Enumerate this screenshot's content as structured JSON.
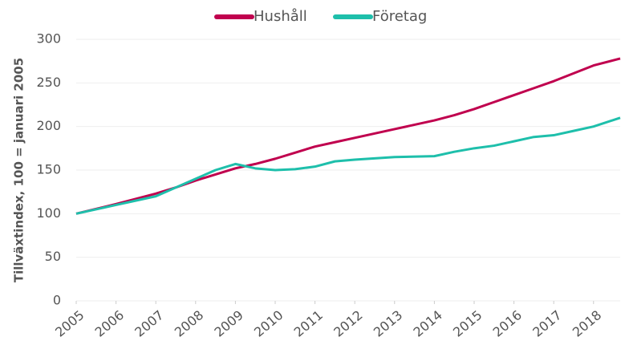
{
  "chart_data": {
    "type": "line",
    "y_label": "Tillväxtindex, 100 = januari 2005",
    "x": [
      2005,
      2006,
      2007,
      2007.5,
      2008,
      2008.5,
      2009,
      2009.5,
      2010,
      2010.5,
      2011,
      2011.5,
      2012,
      2013,
      2014,
      2014.5,
      2015,
      2015.5,
      2016,
      2016.5,
      2017,
      2017.5,
      2018,
      2018.67
    ],
    "series": [
      {
        "name": "Hushåll",
        "color": "#c0004e",
        "values": [
          100,
          111,
          123,
          130,
          138,
          145,
          152,
          157,
          163,
          170,
          177,
          182,
          187,
          197,
          207,
          213,
          220,
          228,
          236,
          244,
          252,
          261,
          270,
          278
        ]
      },
      {
        "name": "Företag",
        "color": "#1ebfab",
        "values": [
          100,
          110,
          120,
          130,
          140,
          150,
          157,
          152,
          150,
          151,
          154,
          160,
          162,
          165,
          166,
          171,
          175,
          178,
          183,
          188,
          190,
          195,
          200,
          210
        ]
      }
    ],
    "xlim": [
      2005,
      2018.67
    ],
    "xticks": [
      2005,
      2006,
      2007,
      2008,
      2009,
      2010,
      2011,
      2012,
      2013,
      2014,
      2015,
      2016,
      2017,
      2018
    ],
    "ylim": [
      0,
      300
    ],
    "yticks": [
      0,
      50,
      100,
      150,
      200,
      250,
      300
    ],
    "grid": true,
    "legend": "top"
  }
}
